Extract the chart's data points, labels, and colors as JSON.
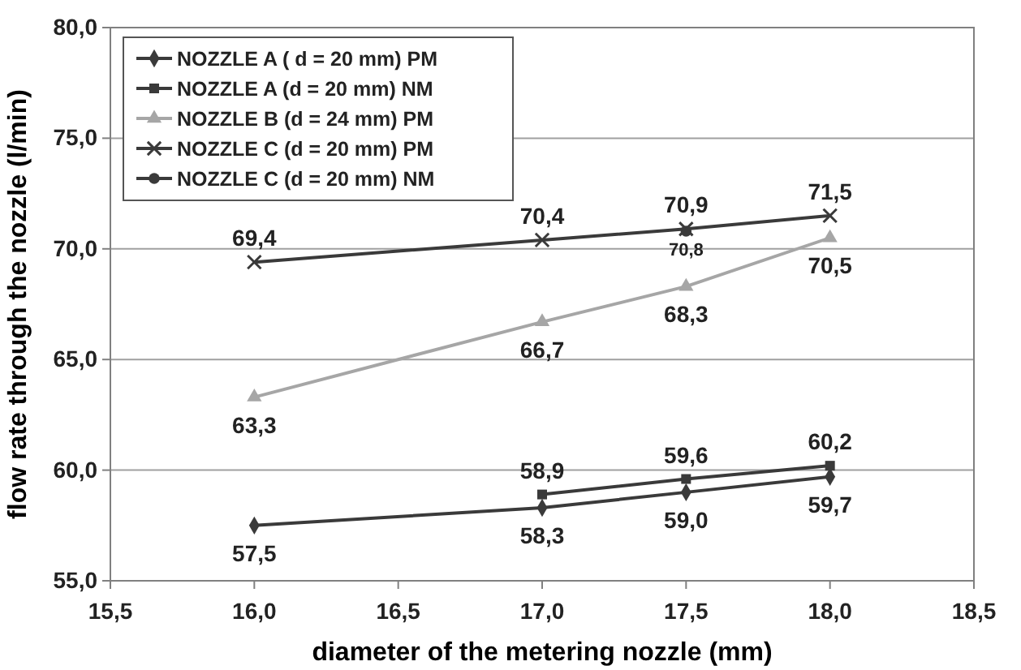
{
  "chart_data": {
    "type": "line",
    "xlabel": "diameter of the metering nozzle  (mm)",
    "ylabel": "flow rate through the nozzle (l/min)",
    "xlim": [
      15.5,
      18.5
    ],
    "xticks": [
      {
        "value": 15.5,
        "label": "15,5"
      },
      {
        "value": 16,
        "label": "16,0"
      },
      {
        "value": 16.5,
        "label": "16,5"
      },
      {
        "value": 17,
        "label": "17,0"
      },
      {
        "value": 17.5,
        "label": "17,5"
      },
      {
        "value": 18,
        "label": "18,0"
      },
      {
        "value": 18.5,
        "label": "18,5"
      }
    ],
    "ylim": [
      55,
      80
    ],
    "yticks": [
      {
        "value": 55,
        "label": "55,0"
      },
      {
        "value": 60,
        "label": "60,0"
      },
      {
        "value": 65,
        "label": "65,0"
      },
      {
        "value": 70,
        "label": "70,0"
      },
      {
        "value": 75,
        "label": "75,0"
      },
      {
        "value": 80,
        "label": "80,0"
      }
    ],
    "grid": "y",
    "legend": "top left",
    "line_style": "solid",
    "series": [
      {
        "name": "NOZZLE A ( d = 20 mm) PM",
        "color": "#3a3a3a",
        "marker": "diamond",
        "x": [
          16,
          17,
          17.5,
          18
        ],
        "values": [
          57.5,
          58.3,
          59.0,
          59.7
        ],
        "value_labels": [
          "57,5",
          "58,3",
          "59,0",
          "59,7"
        ]
      },
      {
        "name": "NOZZLE A (d = 20 mm) NM",
        "color": "#3a3a3a",
        "marker": "square",
        "x": [
          17,
          17.5,
          18
        ],
        "values": [
          58.9,
          59.6,
          60.2
        ],
        "value_labels": [
          "58,9",
          "59,6",
          "60,2"
        ]
      },
      {
        "name": "NOZZLE B (d = 24 mm) PM",
        "color": "#a6a6a6",
        "marker": "triangle",
        "x": [
          16,
          17,
          17.5,
          18
        ],
        "values": [
          63.3,
          66.7,
          68.3,
          70.5
        ],
        "value_labels": [
          "63,3",
          "66,7",
          "68,3",
          "70,5"
        ]
      },
      {
        "name": "NOZZLE C (d = 20 mm) PM",
        "color": "#3a3a3a",
        "marker": "cross",
        "x": [
          16,
          17,
          17.5,
          18
        ],
        "values": [
          69.4,
          70.4,
          70.9,
          71.5
        ],
        "value_labels": [
          "69,4",
          "70,4",
          "70,9",
          "71,5"
        ]
      },
      {
        "name": "NOZZLE C (d = 20 mm) NM",
        "color": "#3a3a3a",
        "marker": "circle",
        "x": [
          17.5
        ],
        "values": [
          70.8
        ],
        "value_labels": [
          "70,8"
        ]
      }
    ]
  }
}
